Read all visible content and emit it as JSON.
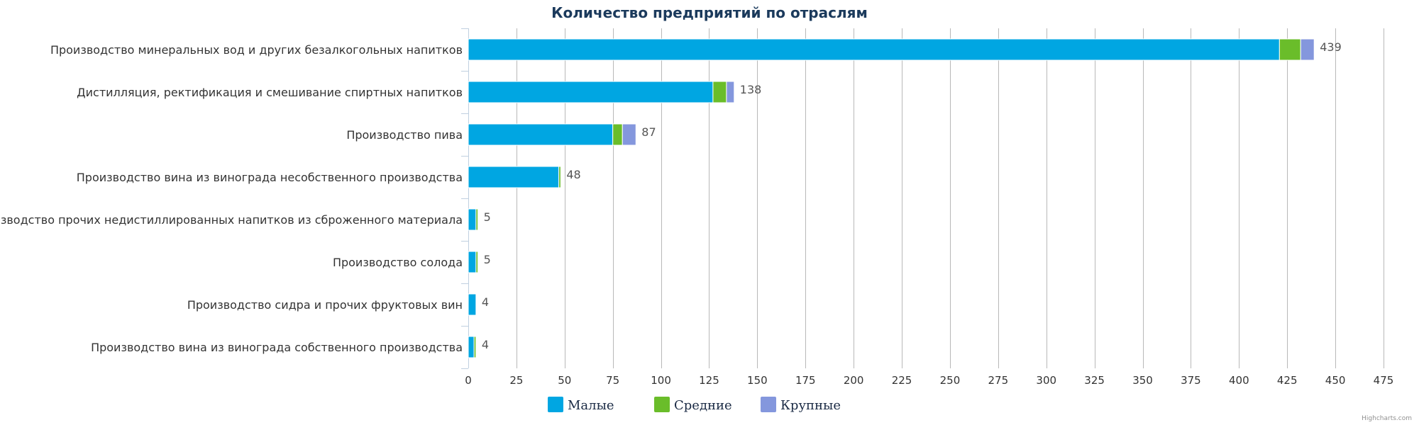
{
  "chart_data": {
    "type": "bar",
    "orientation": "horizontal",
    "stacked": true,
    "title": "Количество предприятий по отраслям",
    "categories": [
      "Производство минеральных вод и других безалкогольных напитков",
      "Дистилляция, ректификация и смешивание спиртных напитков",
      "Производство пива",
      "Производство вина из винограда несобственного производства",
      "Производство прочих недистиллированных напитков из сброженного материала",
      "Производство солода",
      "Производство сидра и прочих фруктовых вин",
      "Производство вина из винограда собственного производства"
    ],
    "series": [
      {
        "name": "Малые",
        "color": "#00a6e2",
        "values": [
          421,
          127,
          75,
          47,
          4,
          4,
          4,
          3
        ]
      },
      {
        "name": "Средние",
        "color": "#6abd2a",
        "values": [
          11,
          7,
          5,
          1,
          1,
          1,
          0,
          1
        ]
      },
      {
        "name": "Крупные",
        "color": "#8497dd",
        "values": [
          7,
          4,
          7,
          0,
          0,
          0,
          0,
          0
        ]
      }
    ],
    "totals": [
      439,
      138,
      87,
      48,
      5,
      5,
      4,
      4
    ],
    "xlim": [
      0,
      475
    ],
    "x_ticks": [
      0,
      25,
      50,
      75,
      100,
      125,
      150,
      175,
      200,
      225,
      250,
      275,
      300,
      325,
      350,
      375,
      400,
      425,
      450,
      475
    ],
    "grid": true,
    "legend_position": "bottom-center",
    "credit": "Highcharts.com"
  }
}
